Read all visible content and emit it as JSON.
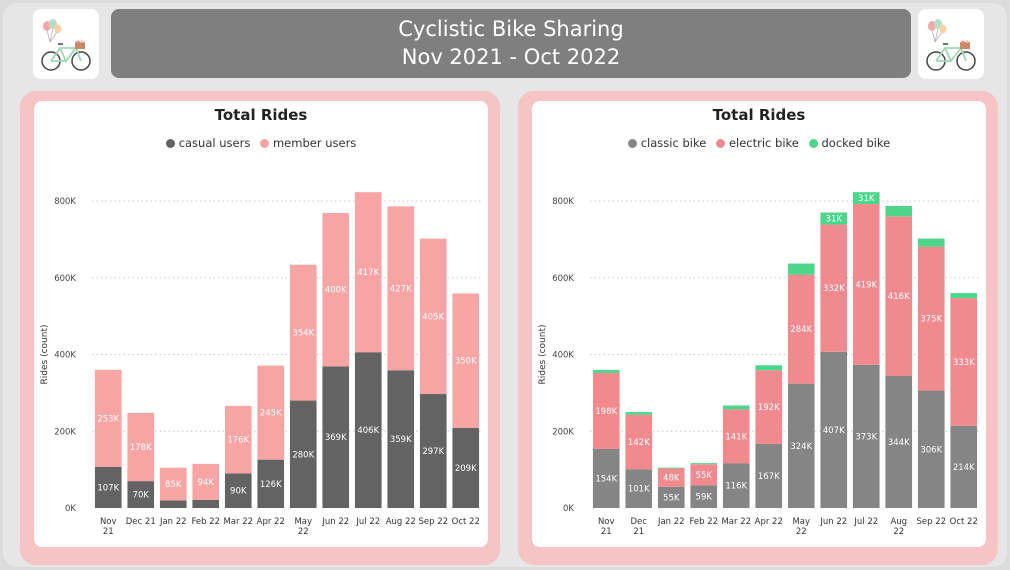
{
  "header": {
    "title_line1": "Cyclistic Bike Sharing",
    "title_line2": "Nov 2021 - Oct 2022"
  },
  "icons": {
    "left_logo": "bicycle-with-balloons-icon",
    "right_logo": "bicycle-with-balloons-icon"
  },
  "colors": {
    "casual": "#636363",
    "member": "#f6a4a4",
    "classic": "#858585",
    "electric": "#f08a8f",
    "docked": "#4dd68a",
    "panel_bg": "#f6c4c4"
  },
  "chart_data": [
    {
      "type": "bar",
      "stacked": true,
      "title": "Total Rides",
      "ylabel": "Rides (count)",
      "ylim": [
        0,
        800000
      ],
      "yticks": [
        0,
        200000,
        400000,
        600000,
        800000
      ],
      "ytick_labels": [
        "0K",
        "200K",
        "400K",
        "600K",
        "800K"
      ],
      "grid": true,
      "legend_position": "top-center",
      "categories": [
        "Nov 21",
        "Dec 21",
        "Jan 22",
        "Feb 22",
        "Mar 22",
        "Apr 22",
        "May 22",
        "Jun 22",
        "Jul 22",
        "Aug 22",
        "Sep 22",
        "Oct 22"
      ],
      "series": [
        {
          "name": "casual users",
          "color": "#636363",
          "values": [
            107000,
            70000,
            20000,
            21000,
            90000,
            126000,
            280000,
            369000,
            406000,
            359000,
            297000,
            209000
          ],
          "labels": [
            "107K",
            "70K",
            "",
            "",
            "90K",
            "126K",
            "280K",
            "369K",
            "406K",
            "359K",
            "297K",
            "209K"
          ]
        },
        {
          "name": "member users",
          "color": "#f6a4a4",
          "values": [
            253000,
            178000,
            85000,
            94000,
            176000,
            245000,
            354000,
            400000,
            417000,
            427000,
            405000,
            350000
          ],
          "labels": [
            "253K",
            "178K",
            "85K",
            "94K",
            "176K",
            "245K",
            "354K",
            "400K",
            "417K",
            "427K",
            "405K",
            "350K"
          ]
        }
      ]
    },
    {
      "type": "bar",
      "stacked": true,
      "title": "Total Rides",
      "ylabel": "Rides (count)",
      "ylim": [
        0,
        800000
      ],
      "yticks": [
        0,
        200000,
        400000,
        600000,
        800000
      ],
      "ytick_labels": [
        "0K",
        "200K",
        "400K",
        "600K",
        "800K"
      ],
      "grid": true,
      "legend_position": "top-center",
      "categories": [
        "Nov 21",
        "Dec 21",
        "Jan 22",
        "Feb 22",
        "Mar 22",
        "Apr 22",
        "May 22",
        "Jun 22",
        "Jul 22",
        "Aug 22",
        "Sep 22",
        "Oct 22"
      ],
      "series": [
        {
          "name": "classic bike",
          "color": "#858585",
          "values": [
            154000,
            101000,
            55000,
            59000,
            116000,
            167000,
            324000,
            407000,
            373000,
            344000,
            306000,
            214000
          ],
          "labels": [
            "154K",
            "101K",
            "55K",
            "59K",
            "116K",
            "167K",
            "324K",
            "407K",
            "373K",
            "344K",
            "306K",
            "214K"
          ]
        },
        {
          "name": "electric bike",
          "color": "#f08a8f",
          "values": [
            198000,
            142000,
            48000,
            55000,
            141000,
            192000,
            284000,
            332000,
            419000,
            416000,
            375000,
            333000
          ],
          "labels": [
            "198K",
            "142K",
            "48K",
            "55K",
            "141K",
            "192K",
            "284K",
            "332K",
            "419K",
            "416K",
            "375K",
            "333K"
          ]
        },
        {
          "name": "docked bike",
          "color": "#4dd68a",
          "values": [
            8000,
            7000,
            2000,
            3000,
            10000,
            13000,
            29000,
            31000,
            31000,
            27000,
            21000,
            13000
          ],
          "labels": [
            "",
            "",
            "",
            "",
            "",
            "",
            "",
            "31K",
            "31K",
            "",
            "",
            ""
          ]
        }
      ]
    }
  ]
}
